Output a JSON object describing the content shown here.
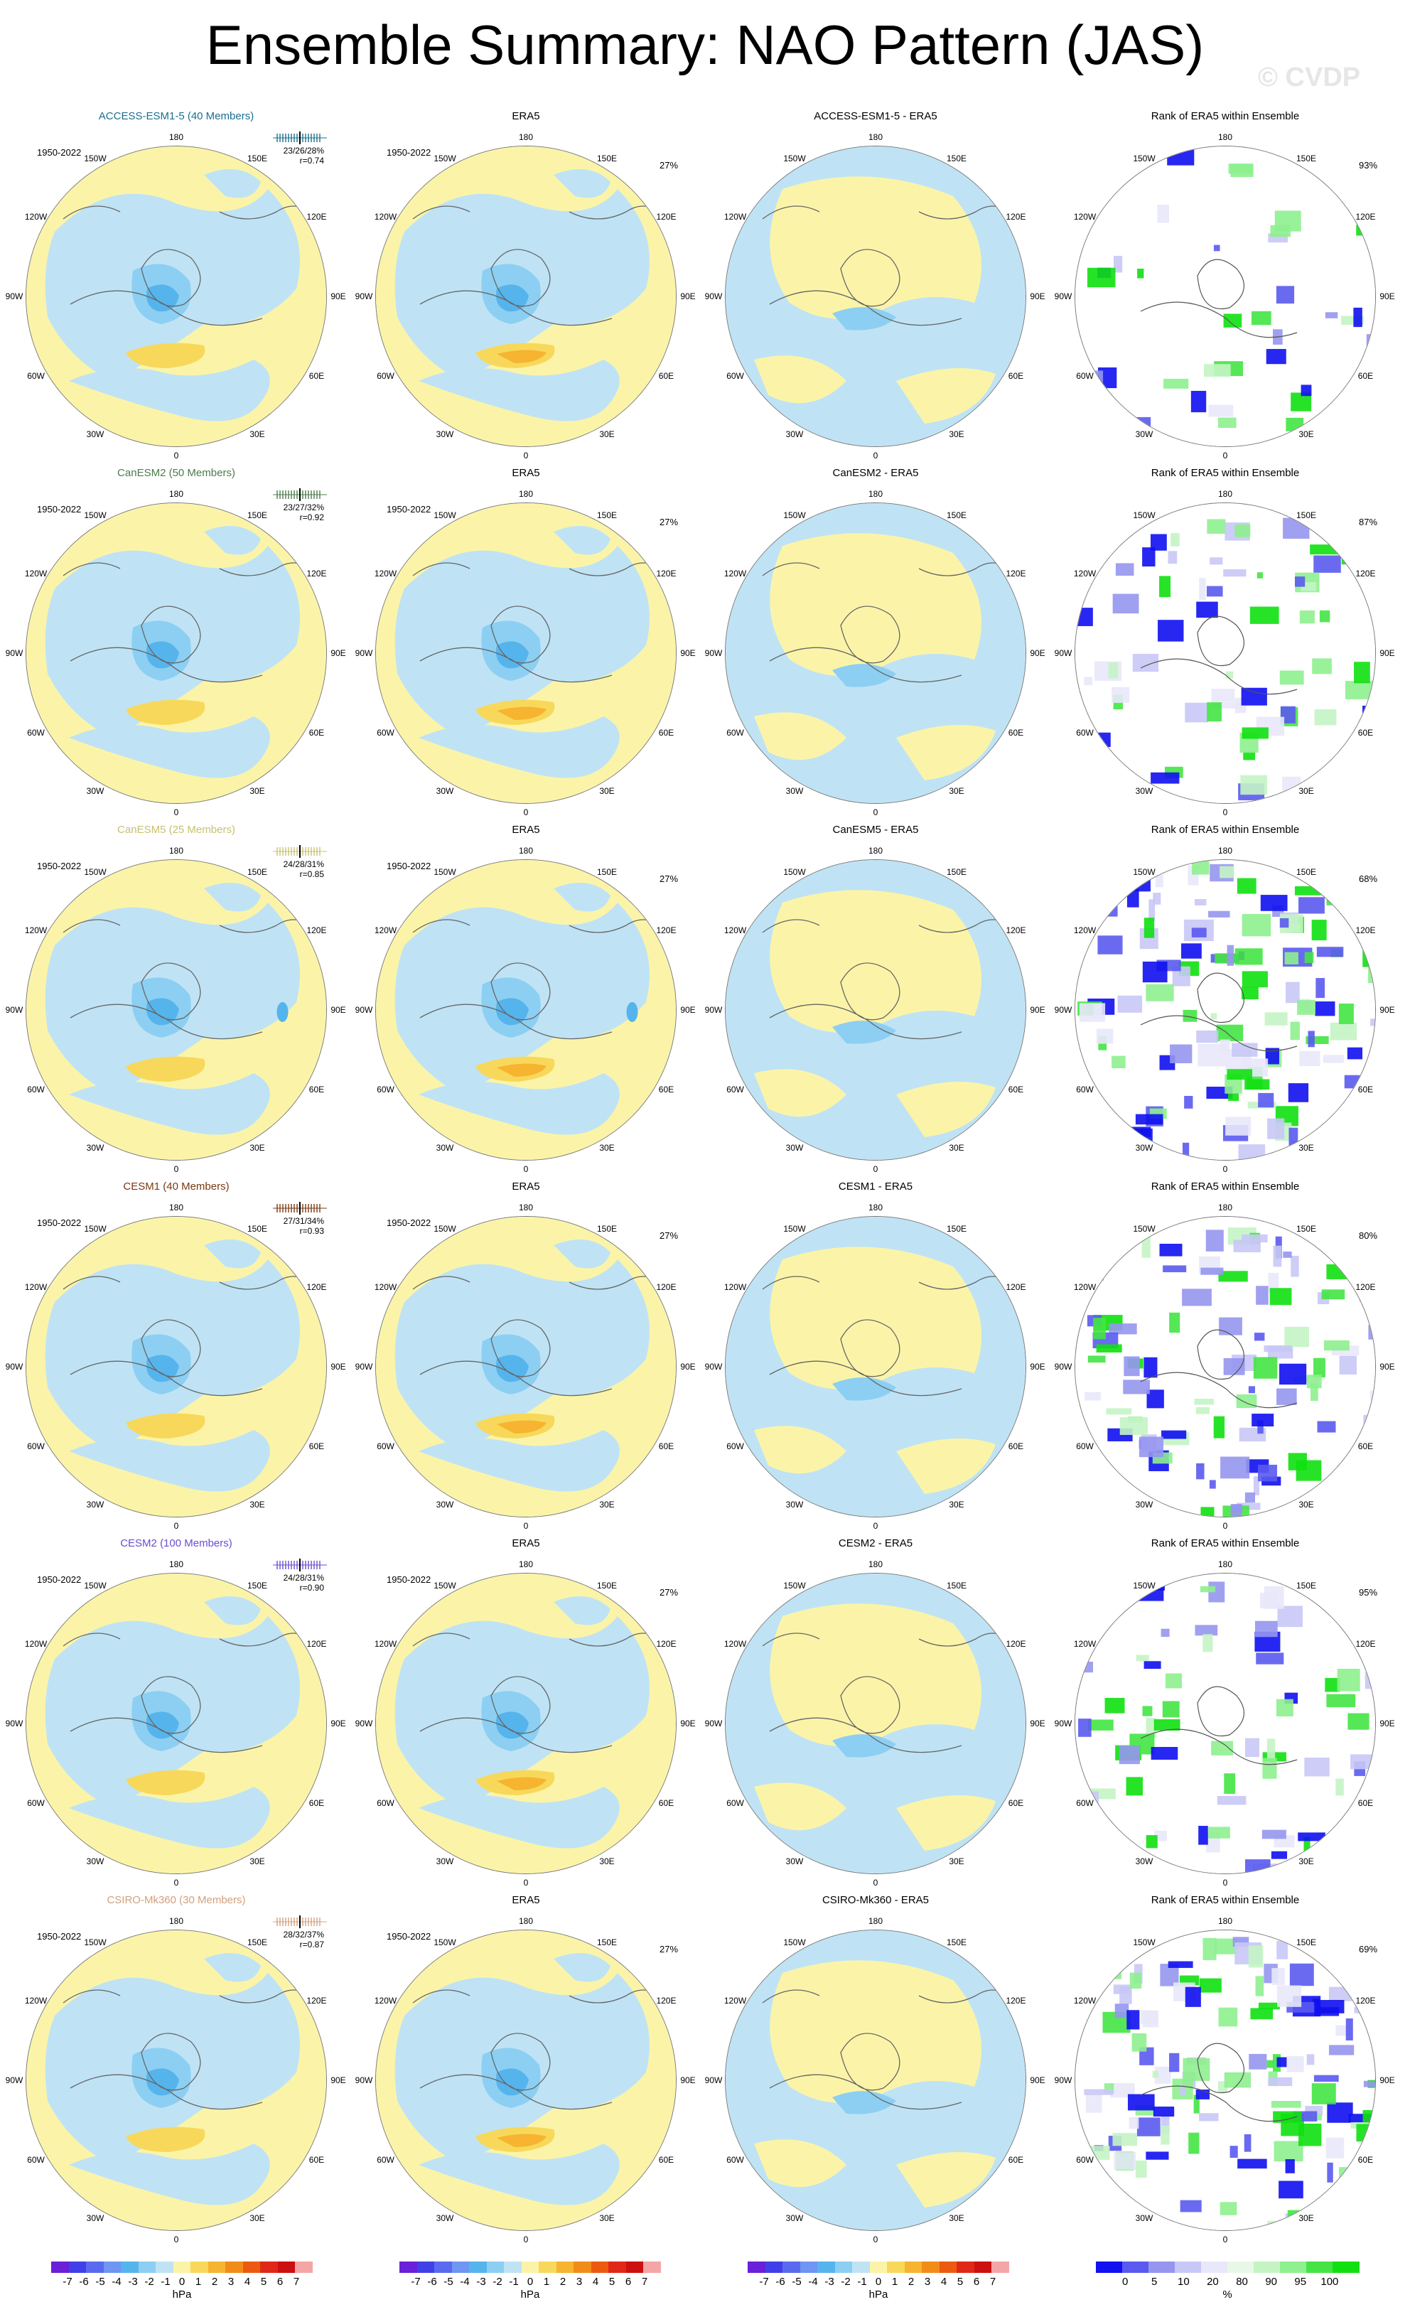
{
  "title": "Ensemble Summary: NAO Pattern (JAS)",
  "watermark": "© CVDP",
  "period": "1950-2022",
  "obs_name": "ERA5",
  "obs_pct": "27%",
  "rank_title": "Rank of ERA5 within Ensemble",
  "lon_labels": [
    "180",
    "150E",
    "120E",
    "90E",
    "60E",
    "30E",
    "0",
    "30W",
    "60W",
    "90W",
    "120W",
    "150W"
  ],
  "rows": [
    {
      "model": "ACCESS-ESM1-5 (40 Members)",
      "color": "#1a6f8f",
      "spread": "23/26/28%",
      "r": "r=0.74",
      "diff_title": "ACCESS-ESM1-5 - ERA5",
      "rank_pct": "93%"
    },
    {
      "model": "CanESM2 (50 Members)",
      "color": "#4c7a4c",
      "spread": "23/27/32%",
      "r": "r=0.92",
      "diff_title": "CanESM2 - ERA5",
      "rank_pct": "87%"
    },
    {
      "model": "CanESM5 (25 Members)",
      "color": "#c8c070",
      "spread": "24/28/31%",
      "r": "r=0.85",
      "diff_title": "CanESM5 - ERA5",
      "rank_pct": "68%"
    },
    {
      "model": "CESM1 (40 Members)",
      "color": "#7a3a10",
      "spread": "27/31/34%",
      "r": "r=0.93",
      "diff_title": "CESM1 - ERA5",
      "rank_pct": "80%"
    },
    {
      "model": "CESM2 (100 Members)",
      "color": "#6a4cd0",
      "spread": "24/28/31%",
      "r": "r=0.90",
      "diff_title": "CESM2 - ERA5",
      "rank_pct": "95%"
    },
    {
      "model": "CSIRO-Mk360 (30 Members)",
      "color": "#d2a07c",
      "spread": "28/32/37%",
      "r": "r=0.87",
      "diff_title": "CSIRO-Mk360 - ERA5",
      "rank_pct": "69%"
    }
  ],
  "colorbar_hpa": {
    "colors": [
      "#6a1fd8",
      "#4040e8",
      "#5a6af0",
      "#6e96f2",
      "#56b4ec",
      "#8ccff2",
      "#bfe3f5",
      "#fbf4a8",
      "#f8d85a",
      "#f6b430",
      "#f28c18",
      "#ec5a10",
      "#e02818",
      "#cc1010",
      "#f4a6a6"
    ],
    "labels": [
      "-7",
      "-6",
      "-5",
      "-4",
      "-3",
      "-2",
      "-1",
      "0",
      "1",
      "2",
      "3",
      "4",
      "5",
      "6",
      "7"
    ],
    "unit": "hPa"
  },
  "colorbar_rank": {
    "colors": [
      "#1010f0",
      "#5a5af0",
      "#9696f0",
      "#c8c8f6",
      "#e8e8fa",
      "#e8f8e8",
      "#c4f4c4",
      "#8ef08e",
      "#44e444",
      "#10e010"
    ],
    "labels": [
      "0",
      "5",
      "10",
      "20",
      "80",
      "90",
      "95",
      "100"
    ],
    "unit": "%"
  }
}
